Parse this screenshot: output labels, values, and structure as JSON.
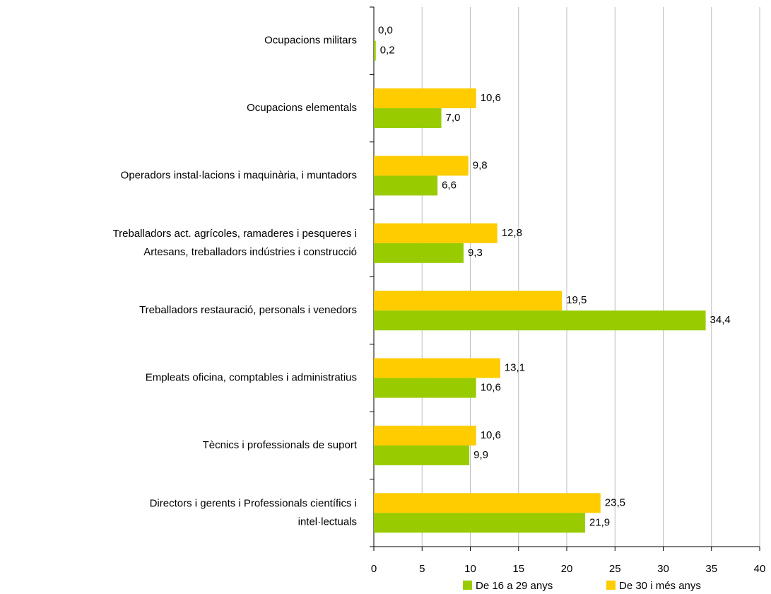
{
  "chart_data": {
    "type": "barh",
    "categories": [
      "Ocupacions militars",
      "Ocupacions elementals",
      "Operadors instal·lacions i maquinària, i muntadors",
      "Treballadors act. agrícoles, ramaderes i pesqueres i\nArtesans, treballadors indústries i construcció",
      "Treballadors restauració, personals i venedors",
      "Empleats oficina, comptables i administratius",
      "Tècnics i professionals de suport",
      "Directors i gerents i Professionals científics i\nintel·lectuals"
    ],
    "series": [
      {
        "name": "De 16 a 29 anys",
        "color": "#99cc00",
        "values": [
          0.2,
          7.0,
          6.6,
          9.3,
          34.4,
          10.6,
          9.9,
          21.9
        ],
        "value_labels": [
          "0,2",
          "7,0",
          "6,6",
          "9,3",
          "34,4",
          "10,6",
          "9,9",
          "21,9"
        ]
      },
      {
        "name": "De 30 i més anys",
        "color": "#ffcc00",
        "values": [
          0.0,
          10.6,
          9.8,
          12.8,
          19.5,
          13.1,
          10.6,
          23.5
        ],
        "value_labels": [
          "0,0",
          "10,6",
          "9,8",
          "12,8",
          "19,5",
          "13,1",
          "10,6",
          "23,5"
        ]
      }
    ],
    "xlim": [
      0,
      40
    ],
    "xticks": [
      0,
      5,
      10,
      15,
      20,
      25,
      30,
      35,
      40
    ],
    "grid": true,
    "legend": "bottom"
  }
}
